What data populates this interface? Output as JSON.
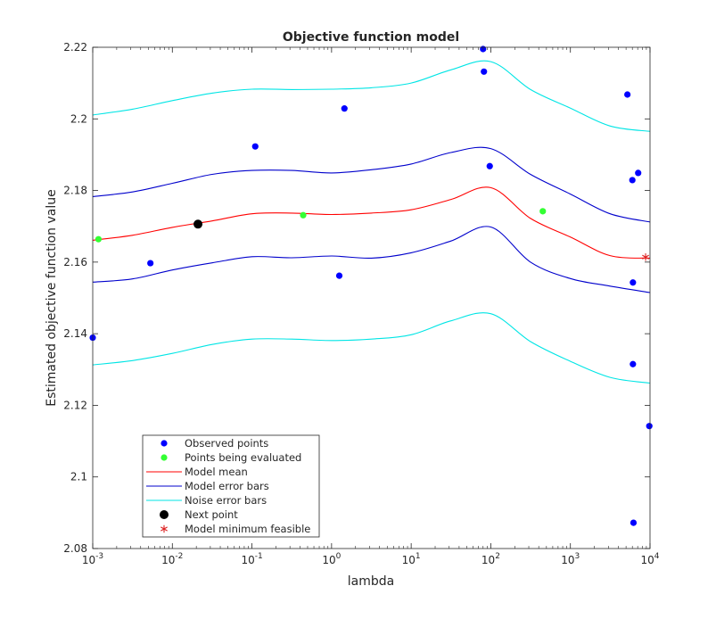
{
  "chart_data": {
    "type": "line",
    "title": "Objective function model",
    "xlabel": "lambda",
    "ylabel": "Estimated objective function value",
    "xscale": "log",
    "xlim_exp": [
      -3,
      4
    ],
    "ylim": [
      2.08,
      2.22
    ],
    "x_ticks": [
      {
        "base": "10",
        "exp": "-3"
      },
      {
        "base": "10",
        "exp": "-2"
      },
      {
        "base": "10",
        "exp": "-1"
      },
      {
        "base": "10",
        "exp": "0"
      },
      {
        "base": "10",
        "exp": "1"
      },
      {
        "base": "10",
        "exp": "2"
      },
      {
        "base": "10",
        "exp": "3"
      },
      {
        "base": "10",
        "exp": "4"
      }
    ],
    "y_ticks": [
      "2.08",
      "2.1",
      "2.12",
      "2.14",
      "2.16",
      "2.18",
      "2.2",
      "2.22"
    ],
    "grid": false,
    "legend_position": "bottom-left",
    "colors": {
      "observed": "#0000ff",
      "evaluating": "#33ff33",
      "mean": "#ff0000",
      "model_err": "#0000cc",
      "noise_err": "#00e5e5",
      "next": "#000000",
      "minimum": "#dd2222"
    },
    "series": [
      {
        "name": "Observed points",
        "kind": "points",
        "points": [
          [
            0.001,
            2.1389
          ],
          [
            0.0053,
            2.1597
          ],
          [
            0.11,
            2.1923
          ],
          [
            1.25,
            2.1562
          ],
          [
            1.45,
            2.2029
          ],
          [
            80,
            2.2195
          ],
          [
            82,
            2.2132
          ],
          [
            97,
            2.1868
          ],
          [
            5200,
            2.2068
          ],
          [
            6000,
            2.1829
          ],
          [
            6100,
            2.1543
          ],
          [
            6100,
            2.1315
          ],
          [
            6200,
            2.0872
          ],
          [
            7100,
            2.1849
          ],
          [
            9800,
            2.1142
          ]
        ]
      },
      {
        "name": "Points being evaluated",
        "kind": "points",
        "points": [
          [
            0.00118,
            2.1664
          ],
          [
            0.44,
            2.1731
          ],
          [
            450,
            2.1742
          ]
        ]
      },
      {
        "name": "Model mean",
        "kind": "line",
        "x": [
          0.001,
          0.00316,
          0.01,
          0.0316,
          0.1,
          0.316,
          1,
          3.16,
          10,
          31.6,
          100,
          316,
          1000,
          3160,
          10000
        ],
        "y": [
          2.1661,
          2.1675,
          2.1697,
          2.1715,
          2.1735,
          2.1737,
          2.1733,
          2.1737,
          2.1746,
          2.1775,
          2.1808,
          2.1722,
          2.167,
          2.1618,
          2.1611
        ]
      },
      {
        "name": "Model error bars",
        "kind": "band",
        "x": [
          0.001,
          0.00316,
          0.01,
          0.0316,
          0.1,
          0.316,
          1,
          3.16,
          10,
          31.6,
          100,
          316,
          1000,
          3160,
          10000
        ],
        "upper": [
          2.1783,
          2.1796,
          2.182,
          2.1845,
          2.1856,
          2.1856,
          2.1849,
          2.1858,
          2.1874,
          2.1906,
          2.1917,
          2.1845,
          2.179,
          2.1735,
          2.1712
        ],
        "lower": [
          2.1544,
          2.1553,
          2.1578,
          2.1598,
          2.1615,
          2.1612,
          2.1617,
          2.1611,
          2.1626,
          2.1659,
          2.1698,
          2.16,
          2.1554,
          2.1533,
          2.1515
        ]
      },
      {
        "name": "Noise error bars",
        "kind": "band",
        "x": [
          0.001,
          0.00316,
          0.01,
          0.0316,
          0.1,
          0.316,
          1,
          3.16,
          10,
          31.6,
          100,
          316,
          1000,
          3160,
          10000
        ],
        "upper": [
          2.2011,
          2.2027,
          2.2051,
          2.2072,
          2.2083,
          2.2082,
          2.2083,
          2.2087,
          2.21,
          2.2137,
          2.216,
          2.2082,
          2.203,
          2.198,
          2.1965
        ],
        "lower": [
          2.1313,
          2.1325,
          2.1345,
          2.137,
          2.1385,
          2.1385,
          2.1381,
          2.1385,
          2.1397,
          2.1436,
          2.1456,
          2.1378,
          2.1323,
          2.1278,
          2.1262
        ]
      },
      {
        "name": "Next point",
        "kind": "points",
        "points": [
          [
            0.021,
            2.1706
          ]
        ]
      },
      {
        "name": "Model minimum feasible",
        "kind": "points",
        "points": [
          [
            8800,
            2.1614
          ]
        ]
      }
    ]
  }
}
